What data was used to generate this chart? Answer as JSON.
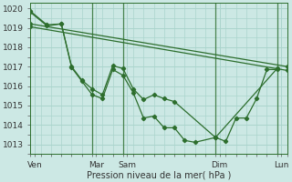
{
  "xlabel": "Pression niveau de la mer( hPa )",
  "background_color": "#cce8e4",
  "grid_color": "#aad4cc",
  "line_color": "#2d6e2d",
  "ylim": [
    1012.5,
    1020.3
  ],
  "xlim": [
    0,
    12.5
  ],
  "day_lines": [
    3.0,
    4.5,
    9.0,
    12.0
  ],
  "x_tick_pos": [
    0.2,
    3.2,
    4.7,
    9.2,
    12.2
  ],
  "x_labels": [
    "Ven",
    "Mar",
    "Sam",
    "Dim",
    "Lun"
  ],
  "y_ticks": [
    1013,
    1014,
    1015,
    1016,
    1017,
    1018,
    1019,
    1020
  ],
  "lines": [
    {
      "x": [
        0,
        12.5
      ],
      "y": [
        1019.2,
        1017.0
      ],
      "style": "solid",
      "markers": true
    },
    {
      "x": [
        0,
        12.5
      ],
      "y": [
        1019.05,
        1016.8
      ],
      "style": "solid",
      "markers": true
    },
    {
      "x": [
        0.0,
        0.8,
        1.5,
        2.0,
        2.5,
        3.0,
        3.5,
        4.0,
        4.5,
        5.0,
        5.5,
        6.0,
        6.5,
        7.0,
        9.0,
        12.0
      ],
      "y": [
        1019.8,
        1019.1,
        1019.2,
        1017.0,
        1016.3,
        1015.85,
        1015.55,
        1017.05,
        1016.9,
        1015.85,
        1015.3,
        1015.55,
        1015.35,
        1015.2,
        1013.35,
        1016.9
      ],
      "style": "solid",
      "markers": true
    },
    {
      "x": [
        0.0,
        0.8,
        1.5,
        2.0,
        2.5,
        3.0,
        3.5,
        4.0,
        4.5,
        5.0,
        5.5,
        6.0,
        6.5,
        7.0,
        7.5,
        8.0,
        9.0,
        9.5,
        10.0,
        10.5,
        11.0,
        11.5,
        12.0
      ],
      "y": [
        1019.85,
        1019.15,
        1019.2,
        1016.95,
        1016.25,
        1015.55,
        1015.35,
        1016.85,
        1016.55,
        1015.65,
        1014.35,
        1014.45,
        1013.85,
        1013.85,
        1013.2,
        1013.1,
        1013.35,
        1013.15,
        1014.35,
        1014.35,
        1015.35,
        1016.85,
        1016.85
      ],
      "style": "solid",
      "markers": true
    }
  ]
}
